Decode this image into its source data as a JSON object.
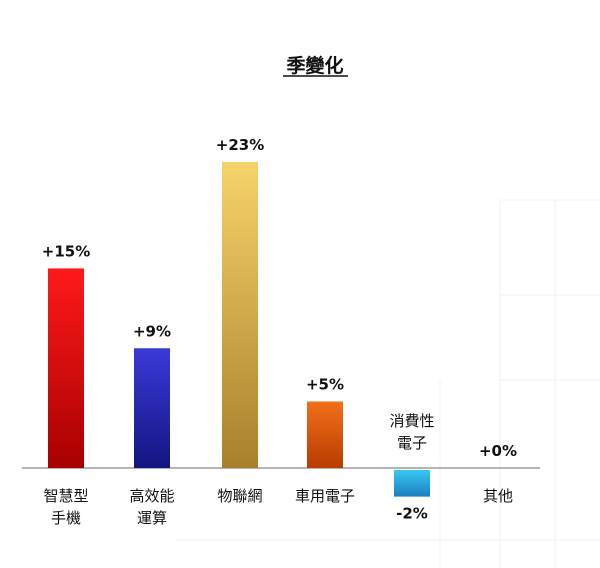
{
  "chart_data": {
    "type": "bar",
    "title": "季變化",
    "xlabel": "",
    "ylabel": "",
    "ylim": [
      -3,
      25
    ],
    "grid": false,
    "categories": [
      [
        "智慧型",
        "手機"
      ],
      [
        "高效能",
        "運算"
      ],
      [
        "物聯網"
      ],
      [
        "車用電子"
      ],
      [
        "消費性",
        "電子"
      ],
      [
        "其他"
      ]
    ],
    "values": [
      15,
      9,
      23,
      5,
      -2,
      0
    ],
    "value_labels": [
      "+15%",
      "+9%",
      "+23%",
      "+5%",
      "-2%",
      "+0%"
    ],
    "colors": [
      [
        "#ff1a1a",
        "#a80000"
      ],
      [
        "#3a3ad8",
        "#141482"
      ],
      [
        "#f7d36a",
        "#a8802c"
      ],
      [
        "#f26f1a",
        "#b83c00"
      ],
      [
        "#38c7f2",
        "#1b7fc2"
      ],
      [
        "#cccccc",
        "#999999"
      ]
    ]
  }
}
